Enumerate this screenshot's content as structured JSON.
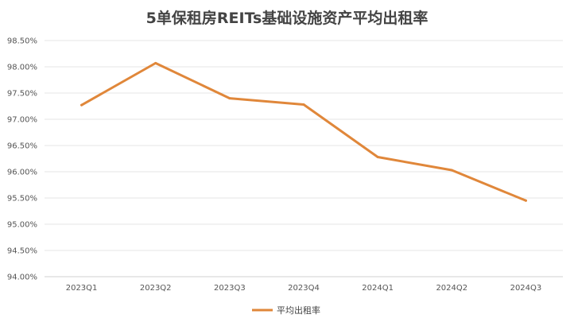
{
  "chart_data": {
    "type": "line",
    "title": "5单保租房REITs基础设施资产平均出租率",
    "categories": [
      "2023Q1",
      "2023Q2",
      "2023Q3",
      "2023Q4",
      "2024Q1",
      "2024Q2",
      "2024Q3"
    ],
    "series": [
      {
        "name": "平均出租率",
        "color": "#E0873A",
        "values": [
          97.27,
          98.07,
          97.4,
          97.28,
          96.28,
          96.03,
          95.45
        ]
      }
    ],
    "ylim": [
      94.0,
      98.5
    ],
    "yticks": [
      "94.00%",
      "94.50%",
      "95.00%",
      "95.50%",
      "96.00%",
      "96.50%",
      "97.00%",
      "97.50%",
      "98.00%",
      "98.50%"
    ],
    "grid": true,
    "legend_position": "bottom"
  }
}
